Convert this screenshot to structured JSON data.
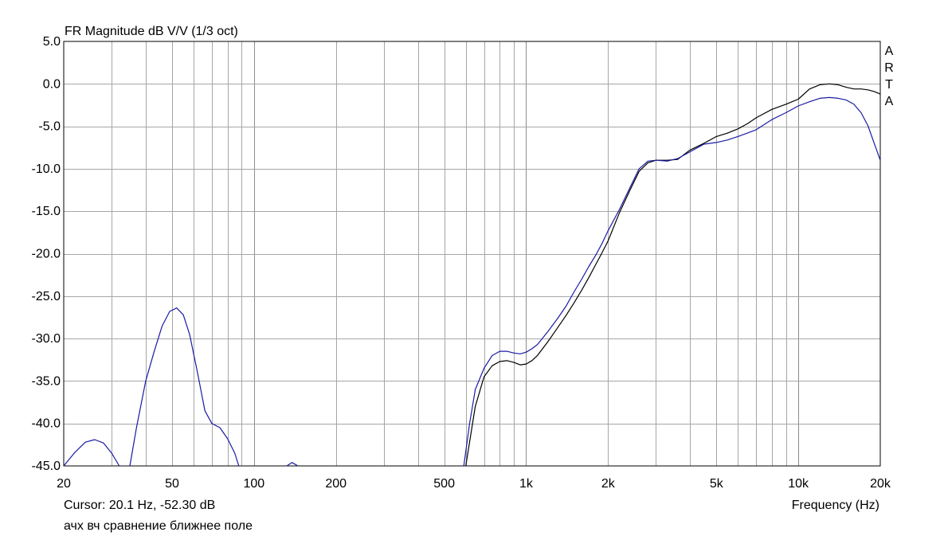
{
  "chart_data": {
    "type": "line",
    "title": "FR Magnitude dB V/V (1/3 oct)",
    "xlabel": "Frequency (Hz)",
    "ylabel": "",
    "xscale": "log",
    "xlim": [
      20,
      20000
    ],
    "ylim": [
      -45,
      5
    ],
    "grid": true,
    "x_tick_labels": [
      "20",
      "50",
      "100",
      "200",
      "500",
      "1k",
      "2k",
      "5k",
      "10k",
      "20k"
    ],
    "x_tick_values": [
      20,
      50,
      100,
      200,
      500,
      1000,
      2000,
      5000,
      10000,
      20000
    ],
    "y_tick_labels": [
      "5.0",
      "0.0",
      "-5.0",
      "-10.0",
      "-15.0",
      "-20.0",
      "-25.0",
      "-30.0",
      "-35.0",
      "-40.0",
      "-45.0"
    ],
    "y_tick_values": [
      5,
      0,
      -5,
      -10,
      -15,
      -20,
      -25,
      -30,
      -35,
      -40,
      -45
    ],
    "brand": [
      "A",
      "R",
      "T",
      "A"
    ],
    "cursor_text": "Cursor: 20.1 Hz, -52.30 dB",
    "caption": "ачх вч сравнение ближнее поле",
    "colors": {
      "series_black": "#000000",
      "series_blue": "#1a1aa6",
      "grid": "#a6a6a6"
    },
    "series": [
      {
        "color": "#000000",
        "segments": [
          [
            [
              600,
              -45
            ],
            [
              650,
              -38
            ],
            [
              700,
              -34.5
            ],
            [
              750,
              -33.2
            ],
            [
              800,
              -32.7
            ],
            [
              850,
              -32.6
            ],
            [
              900,
              -32.8
            ],
            [
              950,
              -33.1
            ],
            [
              1000,
              -33.0
            ],
            [
              1050,
              -32.6
            ],
            [
              1100,
              -32.0
            ],
            [
              1200,
              -30.4
            ],
            [
              1300,
              -28.8
            ],
            [
              1400,
              -27.3
            ],
            [
              1500,
              -25.8
            ],
            [
              1600,
              -24.3
            ],
            [
              1700,
              -22.8
            ],
            [
              1800,
              -21.3
            ],
            [
              1900,
              -19.9
            ],
            [
              2000,
              -18.5
            ],
            [
              2200,
              -15.2
            ],
            [
              2400,
              -12.6
            ],
            [
              2600,
              -10.3
            ],
            [
              2800,
              -9.3
            ],
            [
              3000,
              -9.0
            ],
            [
              3300,
              -9.0
            ],
            [
              3600,
              -8.9
            ],
            [
              4000,
              -7.8
            ],
            [
              4500,
              -7.0
            ],
            [
              5000,
              -6.2
            ],
            [
              5500,
              -5.8
            ],
            [
              6000,
              -5.3
            ],
            [
              6500,
              -4.7
            ],
            [
              7000,
              -4.0
            ],
            [
              8000,
              -3.0
            ],
            [
              9000,
              -2.4
            ],
            [
              10000,
              -1.8
            ],
            [
              11000,
              -0.6
            ],
            [
              12000,
              -0.1
            ],
            [
              13000,
              0.0
            ],
            [
              14000,
              -0.1
            ],
            [
              15000,
              -0.4
            ],
            [
              16000,
              -0.6
            ],
            [
              17000,
              -0.6
            ],
            [
              18000,
              -0.7
            ],
            [
              19000,
              -0.9
            ],
            [
              20000,
              -1.2
            ]
          ]
        ]
      },
      {
        "color": "#1a1aa6",
        "segments": [
          [
            [
              20,
              -45
            ],
            [
              22,
              -43.4
            ],
            [
              24,
              -42.2
            ],
            [
              26,
              -41.9
            ],
            [
              28,
              -42.3
            ],
            [
              30,
              -43.5
            ],
            [
              32,
              -45
            ]
          ],
          [
            [
              35,
              -45
            ],
            [
              37,
              -40.5
            ],
            [
              40,
              -35.0
            ],
            [
              43,
              -31.5
            ],
            [
              46,
              -28.5
            ],
            [
              49,
              -26.8
            ],
            [
              52,
              -26.4
            ],
            [
              55,
              -27.2
            ],
            [
              58,
              -29.5
            ],
            [
              62,
              -34.0
            ],
            [
              66,
              -38.5
            ],
            [
              70,
              -40.0
            ],
            [
              75,
              -40.5
            ],
            [
              80,
              -41.8
            ],
            [
              85,
              -43.5
            ],
            [
              88,
              -45
            ]
          ],
          [
            [
              132,
              -45
            ],
            [
              138,
              -44.6
            ],
            [
              145,
              -45
            ]
          ],
          [
            [
              590,
              -45
            ],
            [
              620,
              -40
            ],
            [
              650,
              -36
            ],
            [
              700,
              -33.5
            ],
            [
              750,
              -32.0
            ],
            [
              800,
              -31.5
            ],
            [
              850,
              -31.5
            ],
            [
              900,
              -31.7
            ],
            [
              950,
              -31.8
            ],
            [
              1000,
              -31.6
            ],
            [
              1050,
              -31.2
            ],
            [
              1100,
              -30.7
            ],
            [
              1200,
              -29.2
            ],
            [
              1300,
              -27.7
            ],
            [
              1400,
              -26.2
            ],
            [
              1500,
              -24.5
            ],
            [
              1600,
              -23.0
            ],
            [
              1700,
              -21.5
            ],
            [
              1800,
              -20.2
            ],
            [
              1900,
              -18.8
            ],
            [
              2000,
              -17.3
            ],
            [
              2200,
              -14.8
            ],
            [
              2400,
              -12.3
            ],
            [
              2600,
              -10.0
            ],
            [
              2800,
              -9.1
            ],
            [
              3000,
              -9.0
            ],
            [
              3300,
              -9.1
            ],
            [
              3600,
              -8.8
            ],
            [
              4000,
              -8.0
            ],
            [
              4500,
              -7.1
            ],
            [
              5000,
              -6.9
            ],
            [
              5500,
              -6.6
            ],
            [
              6000,
              -6.2
            ],
            [
              6500,
              -5.8
            ],
            [
              7000,
              -5.4
            ],
            [
              8000,
              -4.2
            ],
            [
              9000,
              -3.4
            ],
            [
              10000,
              -2.6
            ],
            [
              11000,
              -2.1
            ],
            [
              12000,
              -1.7
            ],
            [
              13000,
              -1.6
            ],
            [
              14000,
              -1.7
            ],
            [
              15000,
              -1.9
            ],
            [
              16000,
              -2.4
            ],
            [
              17000,
              -3.4
            ],
            [
              18000,
              -4.9
            ],
            [
              19000,
              -7.0
            ],
            [
              20000,
              -9.0
            ]
          ]
        ]
      }
    ]
  }
}
